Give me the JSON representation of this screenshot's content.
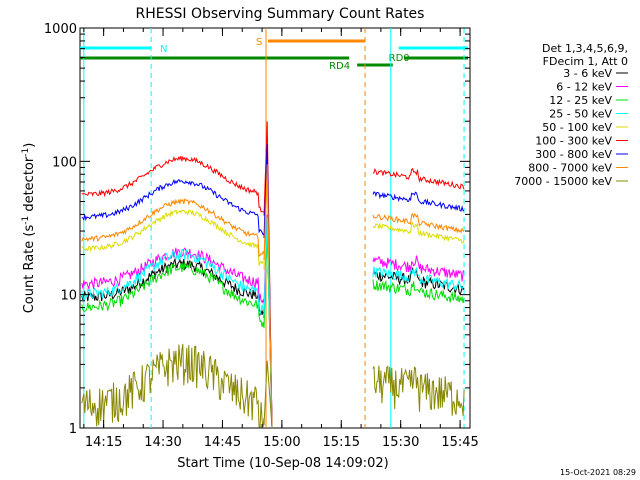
{
  "chart_data": {
    "type": "line",
    "title": "RHESSI Observing Summary Count Rates",
    "xlabel": "Start Time (10-Sep-08 14:09:02)",
    "ylabel_main": "Count Rate (s",
    "ylabel_sup1": "-1",
    "ylabel_mid": " detector",
    "ylabel_sup2": "-1",
    "ylabel_end": ")",
    "y_scale": "log",
    "ylim": [
      1,
      1000
    ],
    "xlim": [
      "14:09:02",
      "15:47:30"
    ],
    "x_ticks": [
      "14:15",
      "14:30",
      "14:45",
      "15:00",
      "15:15",
      "15:30",
      "15:45"
    ],
    "y_ticks": [
      "1",
      "10",
      "100",
      "1000"
    ],
    "legend_header": [
      "Det 1,3,4,5,6,9,",
      "FDecim 1, Att 0"
    ],
    "legend_position": "right",
    "series": [
      {
        "name": "3 - 6 keV",
        "color": "#000000",
        "base": 9.5,
        "peak": 17
      },
      {
        "name": "6 - 12 keV",
        "color": "#ff00ff",
        "base": 12,
        "peak": 21
      },
      {
        "name": "12 - 25 keV",
        "color": "#00dd00",
        "base": 8,
        "peak": 16
      },
      {
        "name": "25 - 50 keV",
        "color": "#00ffff",
        "base": 10,
        "peak": 20
      },
      {
        "name": "50 - 100 keV",
        "color": "#dddd00",
        "base": 22,
        "peak": 42
      },
      {
        "name": "100 - 300 keV",
        "color": "#ff0000",
        "base": 56,
        "peak": 105
      },
      {
        "name": "300 - 800 keV",
        "color": "#0000ff",
        "base": 38,
        "peak": 71
      },
      {
        "name": "800 - 7000 keV",
        "color": "#ff8800",
        "base": 26,
        "peak": 50
      },
      {
        "name": "7000 - 15000 keV",
        "color": "#888800",
        "base": 1.5,
        "peak": 3.2
      }
    ],
    "flags": [
      {
        "label": "N",
        "color": "#00ffff",
        "segments": [
          [
            "14:09:02",
            "14:27:00"
          ],
          [
            "15:29:30",
            "15:47:00"
          ]
        ]
      },
      {
        "label": "S",
        "color": "#ff8800",
        "segments": [
          [
            "14:56:30",
            "15:21:00"
          ]
        ]
      },
      {
        "label": "RD0",
        "color": "#008800",
        "segments": [
          [
            "14:09:02",
            "15:17:00"
          ],
          [
            "15:31:00",
            "15:47:00"
          ]
        ]
      },
      {
        "label": "RD4",
        "color": "#008800",
        "segments": [
          [
            "15:19:00",
            "15:28:00"
          ]
        ]
      }
    ],
    "markers": [
      {
        "time": "14:27:00",
        "color": "#00ffff",
        "style": "dashed"
      },
      {
        "time": "14:10:00",
        "color": "#00ffff",
        "style": "solid"
      },
      {
        "time": "14:56:00",
        "color": "#ff8800",
        "style": "solid"
      },
      {
        "time": "15:21:00",
        "color": "#ff8800",
        "style": "dashed"
      },
      {
        "time": "15:27:30",
        "color": "#00ffff",
        "style": "solid"
      },
      {
        "time": "15:46:00",
        "color": "#00ffff",
        "style": "dashed"
      }
    ],
    "data_gap": [
      "14:57:30",
      "15:23:00"
    ],
    "grid": false
  },
  "footer": {
    "timestamp": "15-Oct-2021 08:29"
  }
}
